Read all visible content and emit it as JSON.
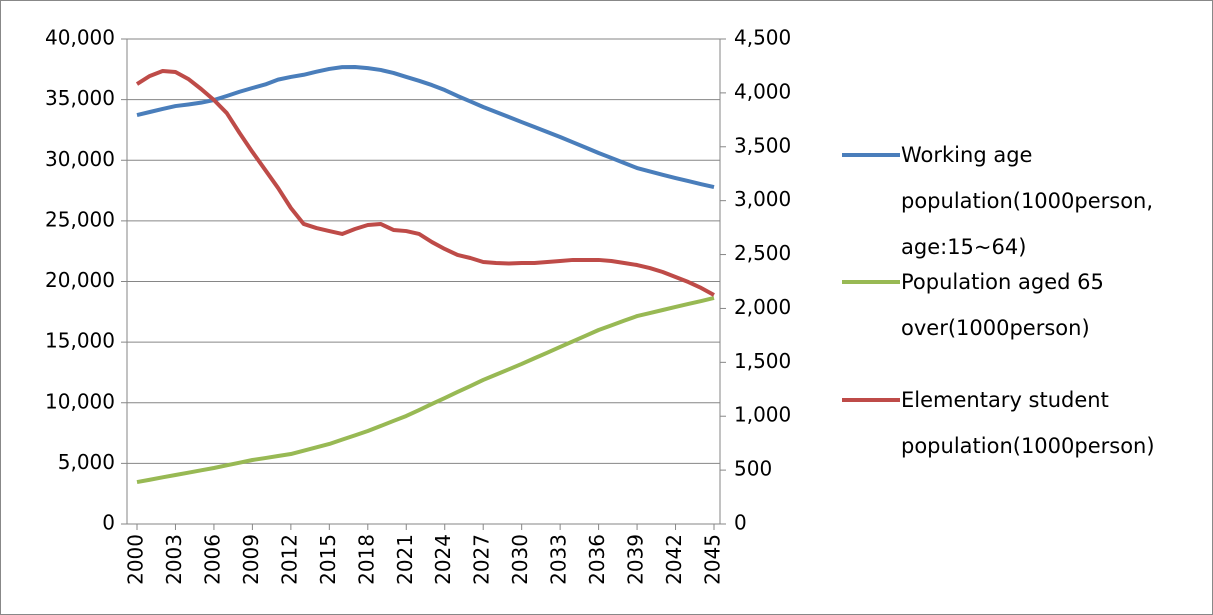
{
  "chart_data": {
    "type": "line",
    "x": [
      2000,
      2001,
      2002,
      2003,
      2004,
      2005,
      2006,
      2007,
      2008,
      2009,
      2010,
      2011,
      2012,
      2013,
      2014,
      2015,
      2016,
      2017,
      2018,
      2019,
      2020,
      2021,
      2022,
      2023,
      2024,
      2025,
      2026,
      2027,
      2028,
      2029,
      2030,
      2031,
      2032,
      2033,
      2034,
      2035,
      2036,
      2037,
      2038,
      2039,
      2040,
      2041,
      2042,
      2043,
      2044,
      2045
    ],
    "xlim": [
      2000,
      2045
    ],
    "xticks": [
      2000,
      2003,
      2006,
      2009,
      2012,
      2015,
      2018,
      2021,
      2024,
      2027,
      2030,
      2033,
      2036,
      2039,
      2042,
      2045
    ],
    "ylim": [
      0,
      40000
    ],
    "yticks": [
      0,
      {
        "value": 5000,
        "label": "5,000"
      },
      {
        "value": 10000,
        "label": "10,000"
      },
      {
        "value": 15000,
        "label": "15,000"
      },
      {
        "value": 20000,
        "label": "20,000"
      },
      {
        "value": 25000,
        "label": "25,000"
      },
      {
        "value": 30000,
        "label": "30,000"
      },
      {
        "value": 35000,
        "label": "35,000"
      },
      {
        "value": 40000,
        "label": "40,000"
      }
    ],
    "y2lim": [
      0,
      4500
    ],
    "y2ticks": [
      0,
      500,
      {
        "value": 1000,
        "label": "1,000"
      },
      {
        "value": 1500,
        "label": "1,500"
      },
      {
        "value": 2000,
        "label": "2,000"
      },
      {
        "value": 2500,
        "label": "2,500"
      },
      {
        "value": 3000,
        "label": "3,000"
      },
      {
        "value": 3500,
        "label": "3,500"
      },
      {
        "value": 4000,
        "label": "4,000"
      },
      {
        "value": 4500,
        "label": "4,500"
      }
    ],
    "grid": true,
    "legend": "right",
    "series": [
      {
        "name": "Working age population(1000person, age:15~64)",
        "color": "#4a7ebb",
        "axis": "y",
        "values": [
          33730,
          33980,
          34230,
          34470,
          34600,
          34750,
          34970,
          35300,
          35650,
          35960,
          36250,
          36650,
          36870,
          37050,
          37300,
          37530,
          37680,
          37690,
          37600,
          37450,
          37200,
          36870,
          36550,
          36200,
          35790,
          35300,
          34850,
          34390,
          33980,
          33570,
          33150,
          32740,
          32330,
          31920,
          31480,
          31040,
          30600,
          30190,
          29770,
          29360,
          29080,
          28800,
          28530,
          28280,
          28030,
          27790
        ]
      },
      {
        "name": "Population aged 65 over(1000person)",
        "color": "#98b954",
        "axis": "y",
        "values": [
          3460,
          3650,
          3850,
          4040,
          4230,
          4430,
          4620,
          4840,
          5060,
          5280,
          5440,
          5610,
          5770,
          6050,
          6320,
          6600,
          6960,
          7310,
          7670,
          8080,
          8500,
          8910,
          9400,
          9900,
          10390,
          10890,
          11380,
          11880,
          12320,
          12760,
          13200,
          13670,
          14130,
          14600,
          15070,
          15530,
          16000,
          16380,
          16770,
          17150,
          17400,
          17650,
          17900,
          18150,
          18390,
          18640
        ]
      },
      {
        "name": "Elementary student population(1000person)",
        "color": "#be4b48",
        "axis": "y2",
        "values": [
          4082,
          4157,
          4203,
          4194,
          4129,
          4036,
          3934,
          3813,
          3628,
          3452,
          3285,
          3118,
          2932,
          2784,
          2746,
          2718,
          2691,
          2737,
          2774,
          2784,
          2728,
          2718,
          2691,
          2616,
          2552,
          2496,
          2468,
          2431,
          2422,
          2417,
          2422,
          2422,
          2431,
          2440,
          2450,
          2450,
          2450,
          2440,
          2422,
          2403,
          2375,
          2338,
          2292,
          2245,
          2190,
          2125
        ]
      }
    ]
  }
}
